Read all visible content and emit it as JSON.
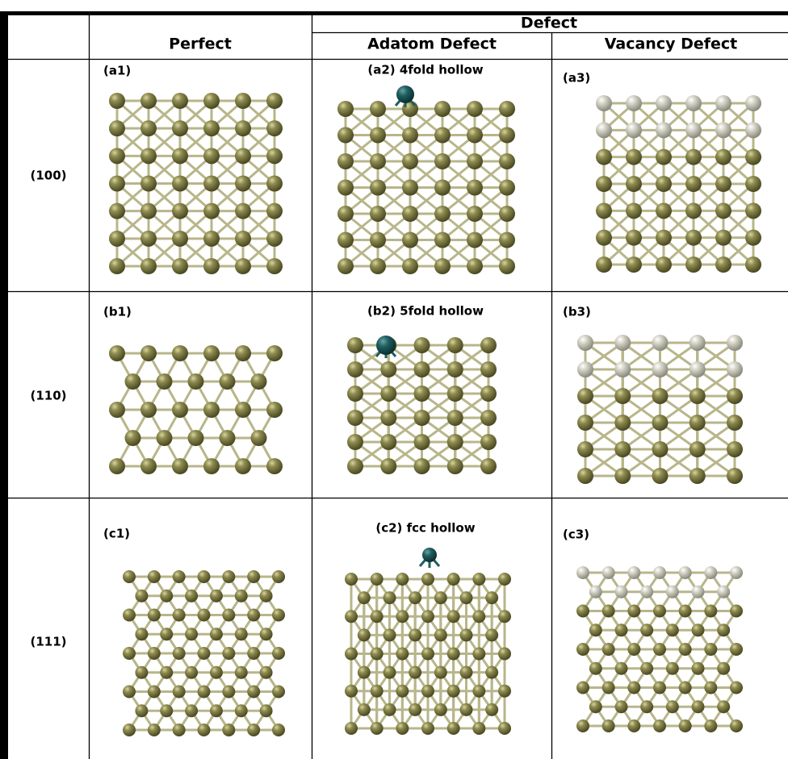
{
  "table": {
    "header": {
      "group": "Defect",
      "columns": [
        "Perfect",
        "Adatom Defect",
        "Vacancy Defect"
      ]
    },
    "rows": [
      {
        "label": "(100)",
        "cells": [
          "(a1)",
          "(a2) 4fold hollow",
          "(a3)"
        ]
      },
      {
        "label": "(110)",
        "cells": [
          "(b1)",
          "(b2) 5fold hollow",
          "(b3)"
        ]
      },
      {
        "label": "(111)",
        "cells": [
          "(c1)",
          "(c2) fcc hollow",
          "(c3)"
        ]
      }
    ]
  }
}
